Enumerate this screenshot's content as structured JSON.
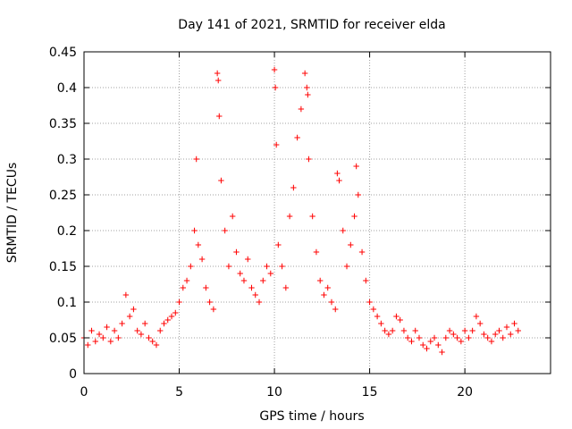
{
  "chart_data": {
    "type": "scatter",
    "title": "Day 141 of 2021, SRMTID for receiver elda",
    "xlabel": "GPS time / hours",
    "ylabel": "SRMTID / TECUs",
    "xlim": [
      0,
      24.5
    ],
    "ylim": [
      0,
      0.45
    ],
    "xticks": [
      0,
      5,
      10,
      15,
      20
    ],
    "xtick_labels": [
      "0",
      "5",
      "10",
      "15",
      "20"
    ],
    "yticks": [
      0,
      0.05,
      0.1,
      0.15,
      0.2,
      0.25,
      0.3,
      0.35,
      0.4,
      0.45
    ],
    "ytick_labels": [
      "0",
      "0.05",
      "0.1",
      "0.15",
      "0.2",
      "0.25",
      "0.3",
      "0.35",
      "0.4",
      "0.45"
    ],
    "grid": true,
    "marker": "+",
    "color": "#ff0000",
    "series": [
      {
        "name": "SRMTID",
        "x": [
          0.0,
          0.2,
          0.4,
          0.6,
          0.8,
          1.0,
          1.2,
          1.4,
          1.6,
          1.8,
          2.0,
          2.2,
          2.4,
          2.6,
          2.8,
          3.0,
          3.2,
          3.4,
          3.6,
          3.8,
          4.0,
          4.2,
          4.4,
          4.6,
          4.8,
          5.0,
          5.2,
          5.4,
          5.6,
          5.8,
          5.9,
          6.0,
          6.2,
          6.4,
          6.6,
          6.8,
          7.0,
          7.05,
          7.1,
          7.2,
          7.4,
          7.6,
          7.8,
          8.0,
          8.2,
          8.4,
          8.6,
          8.8,
          9.0,
          9.2,
          9.4,
          9.6,
          9.8,
          10.0,
          10.05,
          10.1,
          10.2,
          10.4,
          10.6,
          10.8,
          11.0,
          11.2,
          11.4,
          11.6,
          11.7,
          11.75,
          11.8,
          12.0,
          12.2,
          12.4,
          12.6,
          12.8,
          13.0,
          13.2,
          13.3,
          13.4,
          13.6,
          13.8,
          14.0,
          14.2,
          14.3,
          14.4,
          14.6,
          14.8,
          15.0,
          15.2,
          15.4,
          15.6,
          15.8,
          16.0,
          16.2,
          16.4,
          16.6,
          16.8,
          17.0,
          17.2,
          17.4,
          17.6,
          17.8,
          18.0,
          18.2,
          18.4,
          18.6,
          18.8,
          19.0,
          19.2,
          19.4,
          19.6,
          19.8,
          20.0,
          20.2,
          20.4,
          20.6,
          20.8,
          21.0,
          21.2,
          21.4,
          21.6,
          21.8,
          22.0,
          22.2,
          22.4,
          22.6,
          22.8
        ],
        "y": [
          0.05,
          0.04,
          0.06,
          0.045,
          0.055,
          0.05,
          0.065,
          0.045,
          0.06,
          0.05,
          0.07,
          0.11,
          0.08,
          0.09,
          0.06,
          0.055,
          0.07,
          0.05,
          0.045,
          0.04,
          0.06,
          0.07,
          0.075,
          0.08,
          0.085,
          0.1,
          0.12,
          0.13,
          0.15,
          0.2,
          0.3,
          0.18,
          0.16,
          0.12,
          0.1,
          0.09,
          0.42,
          0.41,
          0.36,
          0.27,
          0.2,
          0.15,
          0.22,
          0.17,
          0.14,
          0.13,
          0.16,
          0.12,
          0.11,
          0.1,
          0.13,
          0.15,
          0.14,
          0.425,
          0.4,
          0.32,
          0.18,
          0.15,
          0.12,
          0.22,
          0.26,
          0.33,
          0.37,
          0.42,
          0.4,
          0.39,
          0.3,
          0.22,
          0.17,
          0.13,
          0.11,
          0.12,
          0.1,
          0.09,
          0.28,
          0.27,
          0.2,
          0.15,
          0.18,
          0.22,
          0.29,
          0.25,
          0.17,
          0.13,
          0.1,
          0.09,
          0.08,
          0.07,
          0.06,
          0.055,
          0.06,
          0.08,
          0.075,
          0.06,
          0.05,
          0.045,
          0.06,
          0.05,
          0.04,
          0.035,
          0.045,
          0.05,
          0.04,
          0.03,
          0.05,
          0.06,
          0.055,
          0.05,
          0.045,
          0.06,
          0.05,
          0.06,
          0.08,
          0.07,
          0.055,
          0.05,
          0.045,
          0.055,
          0.06,
          0.05,
          0.065,
          0.055,
          0.07,
          0.06
        ]
      }
    ]
  }
}
